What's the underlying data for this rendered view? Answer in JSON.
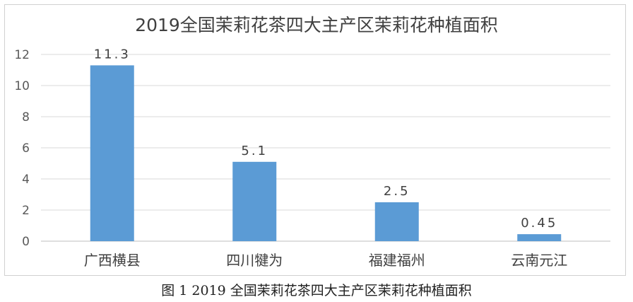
{
  "chart_data": {
    "type": "bar",
    "title": "2019全国茉莉花茶四大主产区茉莉花种植面积",
    "categories": [
      "广西横县",
      "四川犍为",
      "福建福州",
      "云南元江"
    ],
    "values": [
      11.3,
      5.1,
      2.5,
      0.45
    ],
    "data_labels": [
      "11.3",
      "5.1",
      "2.5",
      "0.45"
    ],
    "xlabel": "",
    "ylabel": "",
    "ylim": [
      0,
      12
    ],
    "yticks": [
      0,
      2,
      4,
      6,
      8,
      10,
      12
    ],
    "ytick_labels": [
      "0",
      "2",
      "4",
      "6",
      "8",
      "10",
      "12"
    ],
    "grid": true,
    "legend": "none",
    "bar_color": "#5b9bd5"
  },
  "caption": "图 1 2019 全国茉莉花茶四大主产区茉莉花种植面积"
}
